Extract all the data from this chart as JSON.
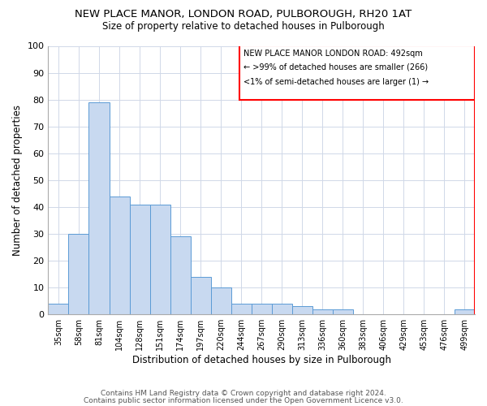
{
  "title1": "NEW PLACE MANOR, LONDON ROAD, PULBOROUGH, RH20 1AT",
  "title2": "Size of property relative to detached houses in Pulborough",
  "xlabel": "Distribution of detached houses by size in Pulborough",
  "ylabel": "Number of detached properties",
  "categories": [
    "35sqm",
    "58sqm",
    "81sqm",
    "104sqm",
    "128sqm",
    "151sqm",
    "174sqm",
    "197sqm",
    "220sqm",
    "244sqm",
    "267sqm",
    "290sqm",
    "313sqm",
    "336sqm",
    "360sqm",
    "383sqm",
    "406sqm",
    "429sqm",
    "453sqm",
    "476sqm",
    "499sqm"
  ],
  "values": [
    4,
    30,
    79,
    44,
    41,
    41,
    29,
    14,
    10,
    4,
    4,
    4,
    3,
    2,
    2,
    0,
    0,
    0,
    0,
    0,
    2
  ],
  "bar_color": "#c8d9f0",
  "bar_edge_color": "#5b9bd5",
  "annotation_text_line1": "NEW PLACE MANOR LONDON ROAD: 492sqm",
  "annotation_text_line2": "← >99% of detached houses are smaller (266)",
  "annotation_text_line3": "<1% of semi-detached houses are larger (1) →",
  "ylim": [
    0,
    100
  ],
  "yticks": [
    0,
    10,
    20,
    30,
    40,
    50,
    60,
    70,
    80,
    90,
    100
  ],
  "footer1": "Contains HM Land Registry data © Crown copyright and database right 2024.",
  "footer2": "Contains public sector information licensed under the Open Government Licence v3.0.",
  "bg_color": "#ffffff",
  "grid_color": "#d0d8e8"
}
